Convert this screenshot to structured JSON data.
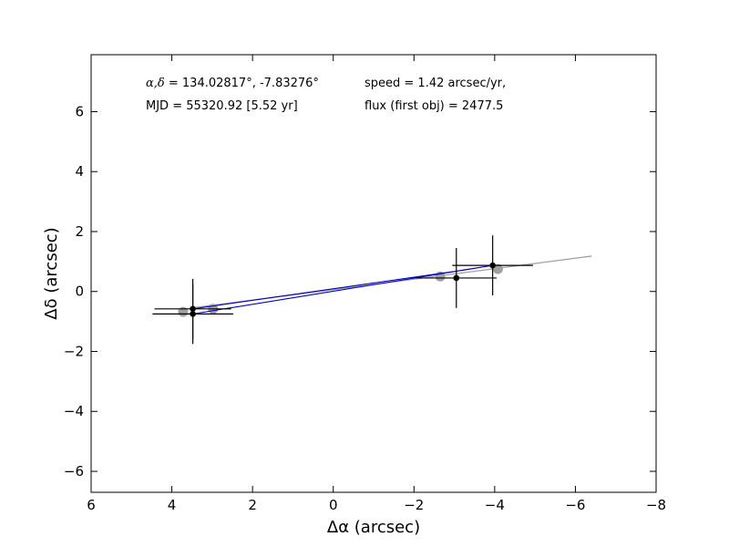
{
  "chart_data": {
    "type": "scatter",
    "xlabel": "Δα (arcsec)",
    "ylabel": "Δδ (arcsec)",
    "xlim": [
      6,
      -8
    ],
    "ylim": [
      -6.7,
      7.9
    ],
    "x_ticks": [
      6,
      4,
      2,
      0,
      -2,
      -4,
      -6,
      -8
    ],
    "x_tick_labels": [
      "6",
      "4",
      "2",
      "0",
      "−2",
      "−4",
      "−6",
      "−8"
    ],
    "y_ticks": [
      6,
      4,
      2,
      0,
      -2,
      -4,
      -6
    ],
    "y_tick_labels": [
      "6",
      "4",
      "2",
      "0",
      "−2",
      "−4",
      "−6"
    ],
    "annotations": {
      "coords_label": "α,δ",
      "coords_value": " = 134.02817°, -7.83276°",
      "mjd": "MJD = 55320.92 [5.52 yr]",
      "speed": "speed = 1.42 arcsec/yr,",
      "flux": "flux (first obj) = 2477.5"
    },
    "series": [
      {
        "style": "gray-fit-line",
        "x": [
          3.5,
          -6.4
        ],
        "y": [
          -0.55,
          1.18
        ]
      },
      {
        "style": "gray-points",
        "x": [
          3.72,
          2.98,
          -2.65,
          -4.08
        ],
        "y": [
          -0.68,
          -0.58,
          0.5,
          0.75
        ]
      },
      {
        "style": "blue-path",
        "x": [
          3.48,
          -3.05,
          -3.95,
          3.48
        ],
        "y": [
          -0.58,
          0.68,
          0.87,
          -0.75
        ]
      },
      {
        "style": "black-points-with-errors",
        "x": [
          3.48,
          3.48,
          -3.05,
          -3.95
        ],
        "y": [
          -0.58,
          -0.75,
          0.45,
          0.87
        ],
        "xerr": [
          0.95,
          1.0,
          1.0,
          1.0
        ],
        "yerr": [
          1.0,
          1.0,
          1.0,
          1.0
        ]
      }
    ],
    "colors": {
      "blue_path": "#0000cc",
      "gray": "#a0a0a0",
      "points": "#000000"
    }
  }
}
